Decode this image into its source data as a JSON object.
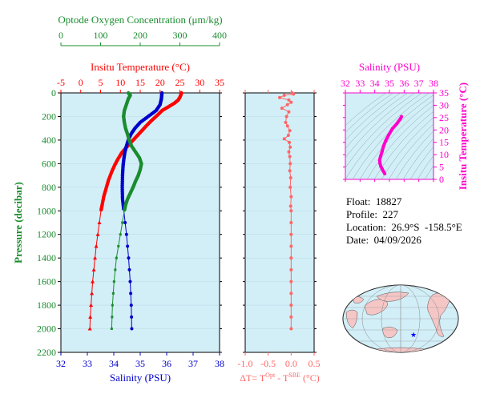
{
  "chart_data": [
    {
      "type": "line",
      "name": "profile",
      "ylabel": "Pressure (decibar)",
      "ylim": [
        2200,
        0
      ],
      "yticks": [
        0,
        200,
        400,
        600,
        800,
        1000,
        1200,
        1400,
        1600,
        1800,
        2000,
        2200
      ],
      "axes": {
        "oxygen": {
          "label": "Optode Oxygen Concentration (μm/kg)",
          "range": [
            0,
            400
          ],
          "ticks": [
            0,
            100,
            200,
            300,
            400
          ],
          "color": "#1a8c2e"
        },
        "temperature": {
          "label": "Insitu Temperature (°C)",
          "range": [
            -5,
            35
          ],
          "ticks": [
            -5,
            0,
            5,
            10,
            15,
            20,
            25,
            30,
            35
          ],
          "color": "#ff0000"
        },
        "salinity": {
          "label": "Salinity (PSU)",
          "range": [
            32,
            38
          ],
          "ticks": [
            32,
            33,
            34,
            35,
            36,
            37,
            38
          ],
          "color": "#0000cc"
        }
      },
      "series": [
        {
          "axis": "temperature",
          "color": "#ff0000",
          "points": [
            [
              25.4,
              0
            ],
            [
              25.1,
              30
            ],
            [
              24.6,
              60
            ],
            [
              23.5,
              90
            ],
            [
              22,
              120
            ],
            [
              20.5,
              150
            ],
            [
              19.3,
              190
            ],
            [
              18,
              230
            ],
            [
              16.8,
              270
            ],
            [
              15.7,
              310
            ],
            [
              14.6,
              350
            ],
            [
              13.5,
              390
            ],
            [
              12.4,
              430
            ],
            [
              11.3,
              470
            ],
            [
              10.3,
              510
            ],
            [
              9.4,
              560
            ],
            [
              8.6,
              610
            ],
            [
              7.8,
              670
            ],
            [
              7,
              740
            ],
            [
              6.4,
              810
            ],
            [
              5.8,
              880
            ],
            [
              5.4,
              950
            ],
            [
              5.1,
              1000
            ],
            [
              4.7,
              1100
            ],
            [
              4.3,
              1200
            ],
            [
              3.9,
              1300
            ],
            [
              3.6,
              1400
            ],
            [
              3.3,
              1500
            ],
            [
              3,
              1600
            ],
            [
              2.8,
              1700
            ],
            [
              2.6,
              1800
            ],
            [
              2.4,
              1900
            ],
            [
              2.3,
              2000
            ]
          ]
        },
        {
          "axis": "salinity",
          "color": "#0000cc",
          "points": [
            [
              35.82,
              0
            ],
            [
              35.8,
              50
            ],
            [
              35.75,
              100
            ],
            [
              35.6,
              150
            ],
            [
              35.3,
              200
            ],
            [
              35.0,
              250
            ],
            [
              34.8,
              300
            ],
            [
              34.65,
              350
            ],
            [
              34.55,
              400
            ],
            [
              34.48,
              450
            ],
            [
              34.42,
              500
            ],
            [
              34.38,
              560
            ],
            [
              34.35,
              620
            ],
            [
              34.33,
              700
            ],
            [
              34.32,
              800
            ],
            [
              34.33,
              900
            ],
            [
              34.38,
              1000
            ],
            [
              34.43,
              1100
            ],
            [
              34.48,
              1200
            ],
            [
              34.52,
              1300
            ],
            [
              34.56,
              1400
            ],
            [
              34.59,
              1500
            ],
            [
              34.62,
              1600
            ],
            [
              34.64,
              1700
            ],
            [
              34.66,
              1800
            ],
            [
              34.67,
              1900
            ],
            [
              34.68,
              2000
            ]
          ]
        },
        {
          "axis": "oxygen",
          "color": "#1a8c2e",
          "points": [
            [
              170,
              0
            ],
            [
              175,
              20
            ],
            [
              170,
              50
            ],
            [
              165,
              100
            ],
            [
              160,
              150
            ],
            [
              158,
              200
            ],
            [
              160,
              250
            ],
            [
              163,
              300
            ],
            [
              168,
              350
            ],
            [
              172,
              400
            ],
            [
              178,
              450
            ],
            [
              188,
              500
            ],
            [
              198,
              550
            ],
            [
              203,
              600
            ],
            [
              200,
              650
            ],
            [
              195,
              700
            ],
            [
              188,
              750
            ],
            [
              182,
              800
            ],
            [
              175,
              850
            ],
            [
              168,
              900
            ],
            [
              163,
              950
            ],
            [
              160,
              1000
            ],
            [
              155,
              1100
            ],
            [
              150,
              1200
            ],
            [
              145,
              1300
            ],
            [
              140,
              1400
            ],
            [
              137,
              1500
            ],
            [
              134,
              1600
            ],
            [
              132,
              1700
            ],
            [
              130,
              1800
            ],
            [
              129,
              1900
            ],
            [
              128,
              2000
            ]
          ]
        }
      ]
    },
    {
      "type": "scatter",
      "name": "temperature-difference",
      "xlabel": "ΔT= T",
      "xlabel_sup1": "Opt",
      "xlabel_mid": " - T",
      "xlabel_sup2": "SBE",
      "xlabel_tail": " (°C)",
      "xlim": [
        -1.0,
        0.5
      ],
      "xticks": [
        "-1.0",
        "-0.5",
        "0.0",
        "0.5"
      ],
      "ylim": [
        2200,
        0
      ],
      "color": "#ff6666",
      "points": [
        [
          0.02,
          0
        ],
        [
          0.05,
          10
        ],
        [
          -0.15,
          20
        ],
        [
          -0.25,
          40
        ],
        [
          -0.05,
          60
        ],
        [
          0.0,
          80
        ],
        [
          -0.08,
          100
        ],
        [
          -0.2,
          130
        ],
        [
          -0.05,
          160
        ],
        [
          -0.1,
          200
        ],
        [
          -0.12,
          250
        ],
        [
          -0.08,
          280
        ],
        [
          -0.03,
          320
        ],
        [
          -0.06,
          360
        ],
        [
          -0.15,
          390
        ],
        [
          -0.04,
          420
        ],
        [
          -0.02,
          460
        ],
        [
          -0.05,
          500
        ],
        [
          -0.03,
          540
        ],
        [
          -0.02,
          600
        ],
        [
          -0.03,
          660
        ],
        [
          -0.01,
          720
        ],
        [
          -0.02,
          800
        ],
        [
          0.0,
          880
        ],
        [
          -0.01,
          960
        ],
        [
          0.0,
          1000
        ],
        [
          0.0,
          1100
        ],
        [
          0.0,
          1200
        ],
        [
          0.0,
          1300
        ],
        [
          0.0,
          1400
        ],
        [
          0.0,
          1500
        ],
        [
          0.0,
          1600
        ],
        [
          0.0,
          1700
        ],
        [
          0.0,
          1800
        ],
        [
          0.0,
          1900
        ],
        [
          0.0,
          2000
        ]
      ]
    },
    {
      "type": "scatter",
      "name": "ts-diagram",
      "xlabel": "Salinity (PSU)",
      "ylabel": "Insitu Temperature (°C)",
      "xlim": [
        32,
        38
      ],
      "ylim": [
        0,
        35
      ],
      "xticks": [
        32,
        33,
        34,
        35,
        36,
        37,
        38
      ],
      "yticks": [
        0,
        5,
        10,
        15,
        20,
        25,
        30,
        35
      ],
      "color": "#ff00cc",
      "points": [
        [
          34.68,
          2.3
        ],
        [
          34.62,
          3
        ],
        [
          34.55,
          3.6
        ],
        [
          34.5,
          4.3
        ],
        [
          34.42,
          5.1
        ],
        [
          34.36,
          6.4
        ],
        [
          34.33,
          7.8
        ],
        [
          34.4,
          9.4
        ],
        [
          34.5,
          11.3
        ],
        [
          34.6,
          13.5
        ],
        [
          34.75,
          15.7
        ],
        [
          34.95,
          18
        ],
        [
          35.2,
          20.5
        ],
        [
          35.5,
          22.5
        ],
        [
          35.75,
          24.6
        ],
        [
          35.82,
          25.4
        ]
      ]
    }
  ],
  "info": {
    "float": "Float:  18827",
    "profile": "Profile:  227",
    "location": "Location:  26.9°S  -158.5°E",
    "date": "Date:  04/09/2026"
  },
  "map": {
    "marker_color": "#0000ff"
  }
}
